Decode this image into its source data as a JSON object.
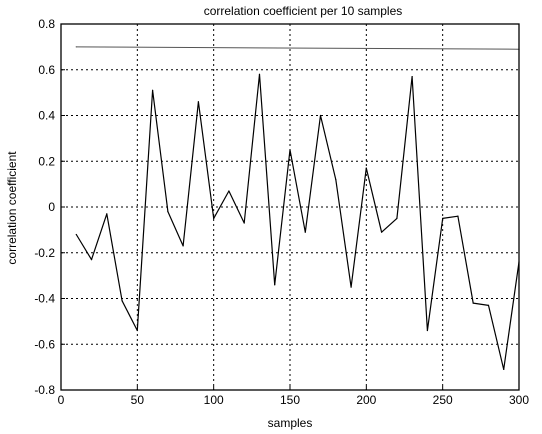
{
  "chart_data": {
    "type": "line",
    "title": "correlation coefficient per 10 samples",
    "xlabel": "samples",
    "ylabel": "correlation coefficient",
    "xlim": [
      0,
      300
    ],
    "ylim": [
      -0.8,
      0.8
    ],
    "grid": true,
    "xticks": [
      "0",
      "50",
      "100",
      "150",
      "200",
      "250",
      "300"
    ],
    "yticks": [
      "0.8",
      "0.6",
      "0.4",
      "0.2",
      "0",
      "-0.2",
      "-0.4",
      "-0.6",
      "-0.8"
    ],
    "series": [
      {
        "x": [
          10,
          20,
          30,
          40,
          50,
          60,
          70,
          80,
          90,
          100,
          110,
          120,
          130,
          140,
          150,
          160,
          170,
          180,
          190,
          200,
          210,
          220,
          230,
          240,
          250,
          260,
          270,
          280,
          290,
          300
        ],
        "y": [
          -0.12,
          -0.23,
          -0.03,
          -0.41,
          -0.54,
          0.51,
          -0.02,
          -0.17,
          0.46,
          -0.05,
          0.07,
          -0.07,
          0.58,
          -0.34,
          0.25,
          -0.11,
          0.4,
          0.12,
          -0.35,
          0.17,
          -0.11,
          -0.05,
          0.57,
          -0.54,
          -0.05,
          -0.04,
          -0.42,
          -0.43,
          -0.71,
          -0.24
        ],
        "color": "#000000"
      },
      {
        "x": [
          10,
          300
        ],
        "y": [
          0.7,
          0.69
        ],
        "color": "#555555"
      }
    ]
  }
}
